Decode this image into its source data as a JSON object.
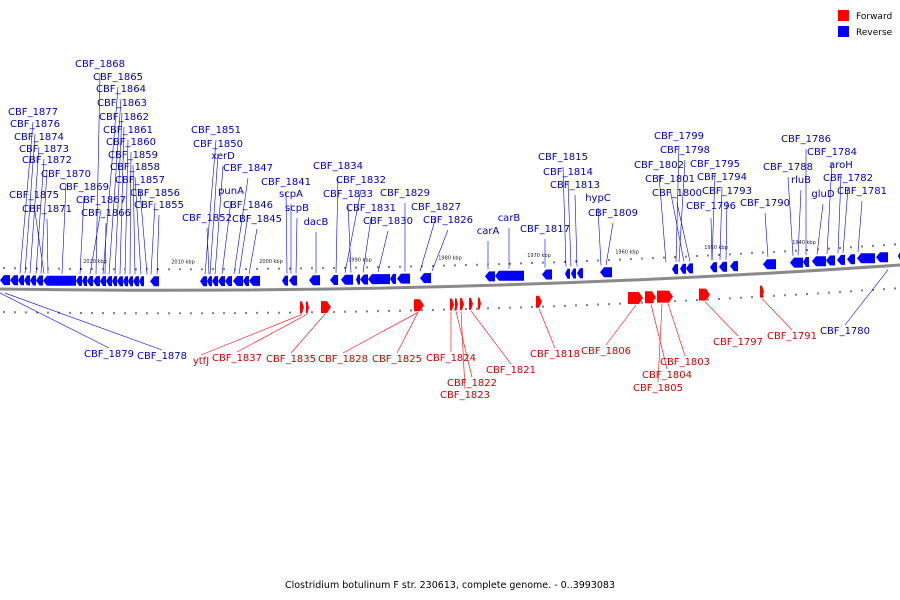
{
  "legend": {
    "items": [
      {
        "label": "Forward",
        "color": "#ff0000"
      },
      {
        "label": "Reverse",
        "color": "#0000ff"
      }
    ]
  },
  "caption": "Clostridium botulinum F str. 230613, complete genome. - 0..3993083",
  "scale": {
    "ticks": [
      "2020 kbp",
      "2010 kbp",
      "2000 kbp",
      "1990 kbp",
      "1980 kbp",
      "1970 kbp",
      "1960 kbp",
      "1950 kbp",
      "1940 kbp"
    ]
  },
  "colors": {
    "forward": "#ff0000",
    "reverse": "#0000ff",
    "forward_label": "#cc0000",
    "reverse_label": "#0000bb"
  },
  "reverse_labels": [
    "CBF_1868",
    "CBF_1865",
    "CBF_1864",
    "CBF_1863",
    "CBF_1862",
    "CBF_1861",
    "CBF_1860",
    "CBF_1859",
    "CBF_1858",
    "CBF_1857",
    "CBF_1856",
    "CBF_1855",
    "CBF_1877",
    "CBF_1876",
    "CBF_1874",
    "CBF_1873",
    "CBF_1872",
    "CBF_1870",
    "CBF_1869",
    "CBF_1875",
    "CBF_1871",
    "CBF_1867",
    "CBF_1866",
    "CBF_1851",
    "CBF_1850",
    "xerD",
    "CBF_1847",
    "punA",
    "CBF_1846",
    "CBF_1852",
    "CBF_1845",
    "CBF_1841",
    "scpA",
    "scpB",
    "dacB",
    "CBF_1834",
    "CBF_1832",
    "CBF_1833",
    "CBF_1831",
    "CBF_1830",
    "CBF_1829",
    "CBF_1827",
    "CBF_1826",
    "carA",
    "carB",
    "CBF_1817",
    "CBF_1815",
    "CBF_1814",
    "CBF_1813",
    "hypC",
    "CBF_1809",
    "CBF_1799",
    "CBF_1798",
    "CBF_1802",
    "CBF_1795",
    "CBF_1801",
    "CBF_1794",
    "CBF_1800",
    "CBF_1793",
    "CBF_1796",
    "CBF_1790",
    "CBF_1786",
    "CBF_1788",
    "CBF_1784",
    "rluB",
    "aroH",
    "gluD",
    "CBF_1782",
    "CBF_1781",
    "CBF_1879",
    "CBF_1878",
    "CBF_1780"
  ],
  "forward_labels": [
    "ytfJ",
    "CBF_1837",
    "CBF_1835",
    "CBF_1828",
    "CBF_1825",
    "CBF_1824",
    "CBF_1822",
    "CBF_1823",
    "CBF_1821",
    "CBF_1818",
    "CBF_1806",
    "CBF_1804",
    "CBF_1805",
    "CBF_1803",
    "CBF_1797",
    "CBF_1791"
  ]
}
